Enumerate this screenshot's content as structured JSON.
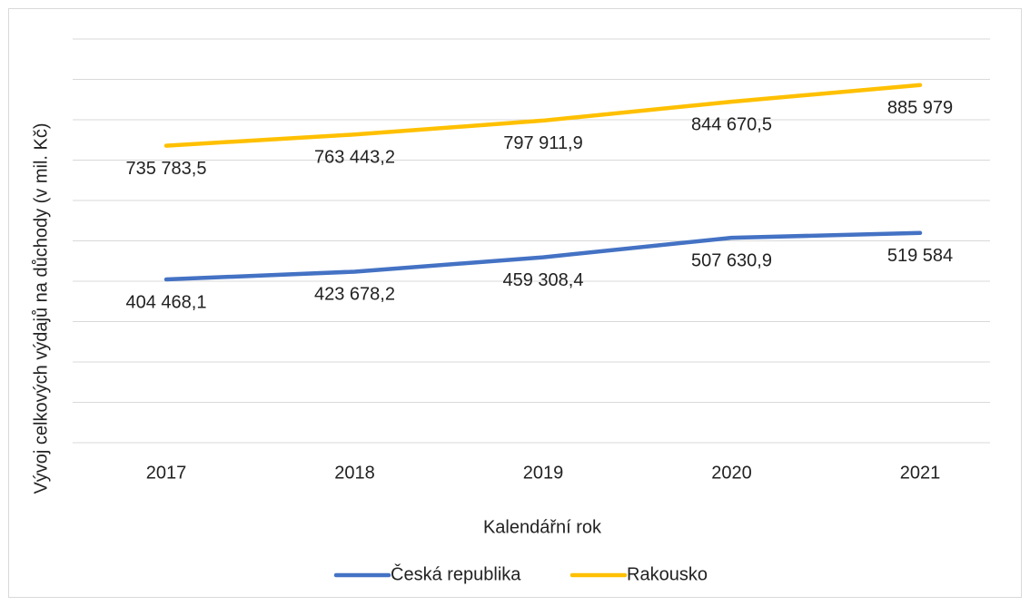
{
  "chart_data": {
    "type": "line",
    "y_label": "Vývoj celkových výdajů na důchody (v mil. Kč)",
    "x_label": "Kalendářní rok",
    "categories": [
      "2017",
      "2018",
      "2019",
      "2020",
      "2021"
    ],
    "series": [
      {
        "name": "Česká republika",
        "color": "#4472c4",
        "values": [
          404468.1,
          423678.2,
          459308.4,
          507630.9,
          519584
        ],
        "value_labels": [
          "404 468,1",
          "423 678,2",
          "459 308,4",
          "507 630,9",
          "519 584"
        ]
      },
      {
        "name": "Rakousko",
        "color": "#ffc000",
        "values": [
          735783.5,
          763443.2,
          797911.9,
          844670.5,
          885979
        ],
        "value_labels": [
          "735 783,5",
          "763 443,2",
          "797 911,9",
          "844 670,5",
          "885 979"
        ]
      }
    ],
    "ylim": [
      0,
      1000000
    ],
    "yticks": [
      0,
      100000,
      200000,
      300000,
      400000,
      500000,
      600000,
      700000,
      800000,
      900000,
      1000000
    ],
    "grid": true,
    "legend": "bottom"
  }
}
